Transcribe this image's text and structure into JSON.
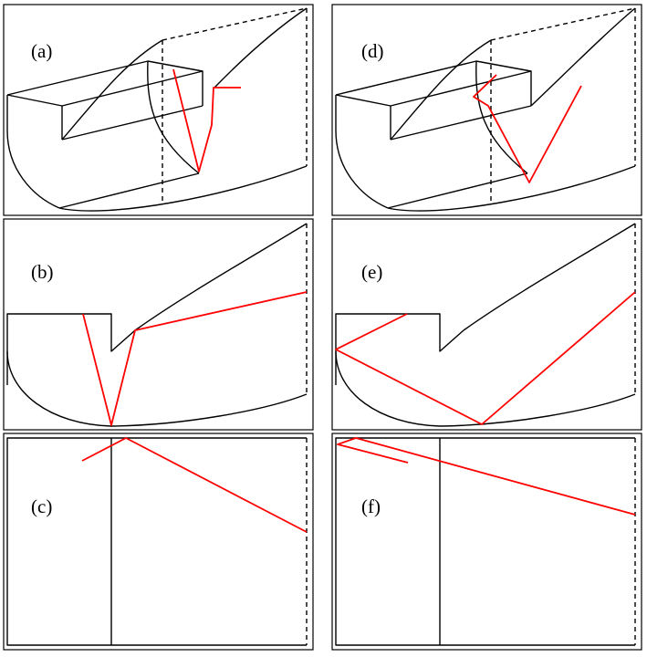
{
  "panels": [
    {
      "id": "a",
      "label": "(a)"
    },
    {
      "id": "b",
      "label": "(b)"
    },
    {
      "id": "c",
      "label": "(c)"
    },
    {
      "id": "d",
      "label": "(d)"
    },
    {
      "id": "e",
      "label": "(e)"
    },
    {
      "id": "f",
      "label": "(f)"
    }
  ],
  "colors": {
    "geometry": "#000000",
    "ray_path": "#ff0000",
    "background": "#ffffff"
  }
}
